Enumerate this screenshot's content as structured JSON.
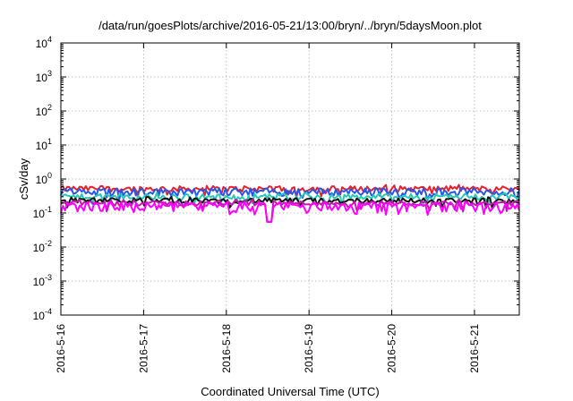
{
  "chart_data": {
    "type": "line",
    "title": "/data/run/goesPlots/archive/2016-05-21/13:00/bryn/../bryn/5daysMoon.plot",
    "xlabel": "Coordinated Universal Time (UTC)",
    "ylabel": "cSv/day",
    "yscale": "log",
    "ylim": [
      0.0001,
      10000
    ],
    "xlim": [
      "2016-05-16",
      "2016-05-21 13:00"
    ],
    "x_ticks": [
      "2016-5-16",
      "2016-5-17",
      "2016-5-18",
      "2016-5-19",
      "2016-5-20",
      "2016-5-21"
    ],
    "y_ticks": [
      {
        "base": "10",
        "exp": "-4"
      },
      {
        "base": "10",
        "exp": "-3"
      },
      {
        "base": "10",
        "exp": "-2"
      },
      {
        "base": "10",
        "exp": "-1"
      },
      {
        "base": "10",
        "exp": "0"
      },
      {
        "base": "10",
        "exp": "1"
      },
      {
        "base": "10",
        "exp": "2"
      },
      {
        "base": "10",
        "exp": "3"
      },
      {
        "base": "10",
        "exp": "4"
      }
    ],
    "grid": true,
    "series": [
      {
        "color": "#e8202a",
        "level": 0.52,
        "jitter": 0.1
      },
      {
        "color": "#2a56e8",
        "level": 0.43,
        "jitter": 0.11
      },
      {
        "color": "#27c9b6",
        "level": 0.3,
        "jitter": 0.06
      },
      {
        "color": "#111111",
        "level": 0.235,
        "jitter": 0.04
      },
      {
        "color": "#c01aa8",
        "level": 0.195,
        "jitter": 0.03
      },
      {
        "color": "#ff00ff",
        "level": 0.16,
        "jitter": 0.05
      }
    ]
  }
}
